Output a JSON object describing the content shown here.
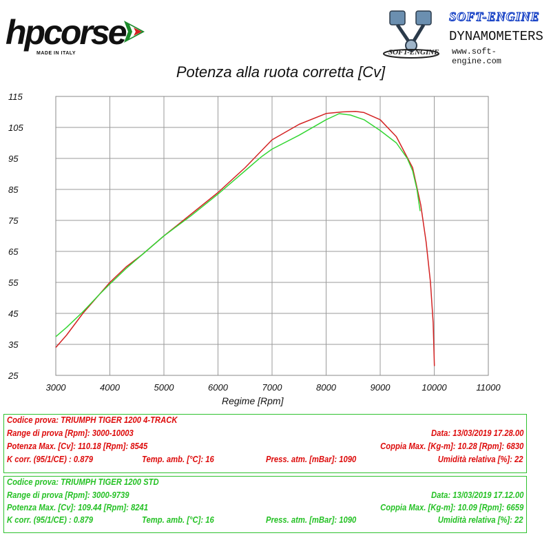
{
  "logos": {
    "hpcorse": {
      "text": "hpcorse",
      "subtext": "MADE IN ITALY"
    },
    "softengine": {
      "title": "SOFT-ENGINE",
      "subtitle": "DYNAMOMETERS",
      "url": "www.soft-engine.com",
      "brand": "SOFT-ENGINE"
    }
  },
  "chart_data": {
    "type": "line",
    "title": "Potenza alla ruota corretta [Cv]",
    "xlabel": "Regime [Rpm]",
    "ylabel": "",
    "xlim": [
      3000,
      11000
    ],
    "ylim": [
      25,
      115
    ],
    "x_ticks": [
      3000,
      4000,
      5000,
      6000,
      7000,
      8000,
      9000,
      10000,
      11000
    ],
    "y_ticks": [
      115,
      105,
      95,
      85,
      75,
      65,
      55,
      45,
      35,
      25
    ],
    "grid": true,
    "legend": "none",
    "series": [
      {
        "color": "#d32222",
        "x": [
          3000,
          3200,
          3500,
          3800,
          4000,
          4300,
          4600,
          5000,
          5500,
          6000,
          6500,
          7000,
          7500,
          8000,
          8300,
          8545,
          8700,
          9000,
          9300,
          9600,
          9750,
          9850,
          9930,
          9980,
          10003
        ],
        "y": [
          34,
          38,
          45,
          51,
          55,
          60,
          64,
          70,
          77,
          84,
          92,
          101,
          106,
          109.5,
          110,
          110.18,
          109.8,
          107.5,
          102,
          92,
          80,
          68,
          55,
          42,
          28
        ]
      },
      {
        "color": "#33d633",
        "x": [
          3000,
          3200,
          3500,
          3800,
          4000,
          4300,
          4600,
          5000,
          5500,
          6000,
          6500,
          6800,
          7000,
          7500,
          8000,
          8241,
          8450,
          8700,
          9000,
          9300,
          9500,
          9600,
          9680,
          9739
        ],
        "y": [
          37.5,
          40.5,
          45.5,
          51,
          54.5,
          59.5,
          64,
          70,
          76.5,
          83.5,
          91,
          95.5,
          98,
          102.5,
          107.5,
          109.44,
          109,
          107.5,
          104,
          100,
          95,
          91,
          85,
          78
        ]
      }
    ]
  },
  "tests": [
    {
      "codice": "Codice prova: TRIUMPH TIGER 1200 4-TRACK",
      "range": "Range di prova [Rpm]: 3000-10003",
      "data": "Data: 13/03/2019   17.28.00",
      "potenza": "Potenza Max. [Cv]: 110.18   [Rpm]: 8545",
      "coppia": "Coppia Max. [Kg-m]: 10.28   [Rpm]: 6830",
      "kcorr": "K corr. (95/1/CE) : 0.879",
      "temp": "Temp. amb. [°C]: 16",
      "press": "Press. atm. [mBar]: 1090",
      "umidita": "Umidità relativa [%]: 22"
    },
    {
      "codice": "Codice prova: TRIUMPH TIGER 1200 STD",
      "range": "Range di prova [Rpm]: 3000-9739",
      "data": "Data: 13/03/2019   17.12.00",
      "potenza": "Potenza Max. [Cv]: 109.44   [Rpm]: 8241",
      "coppia": "Coppia Max. [Kg-m]: 10.09   [Rpm]: 6659",
      "kcorr": "K corr. (95/1/CE) : 0.879",
      "temp": "Temp. amb. [°C]: 16",
      "press": "Press. atm. [mBar]: 1090",
      "umidita": "Umidità relativa [%]: 22"
    }
  ]
}
